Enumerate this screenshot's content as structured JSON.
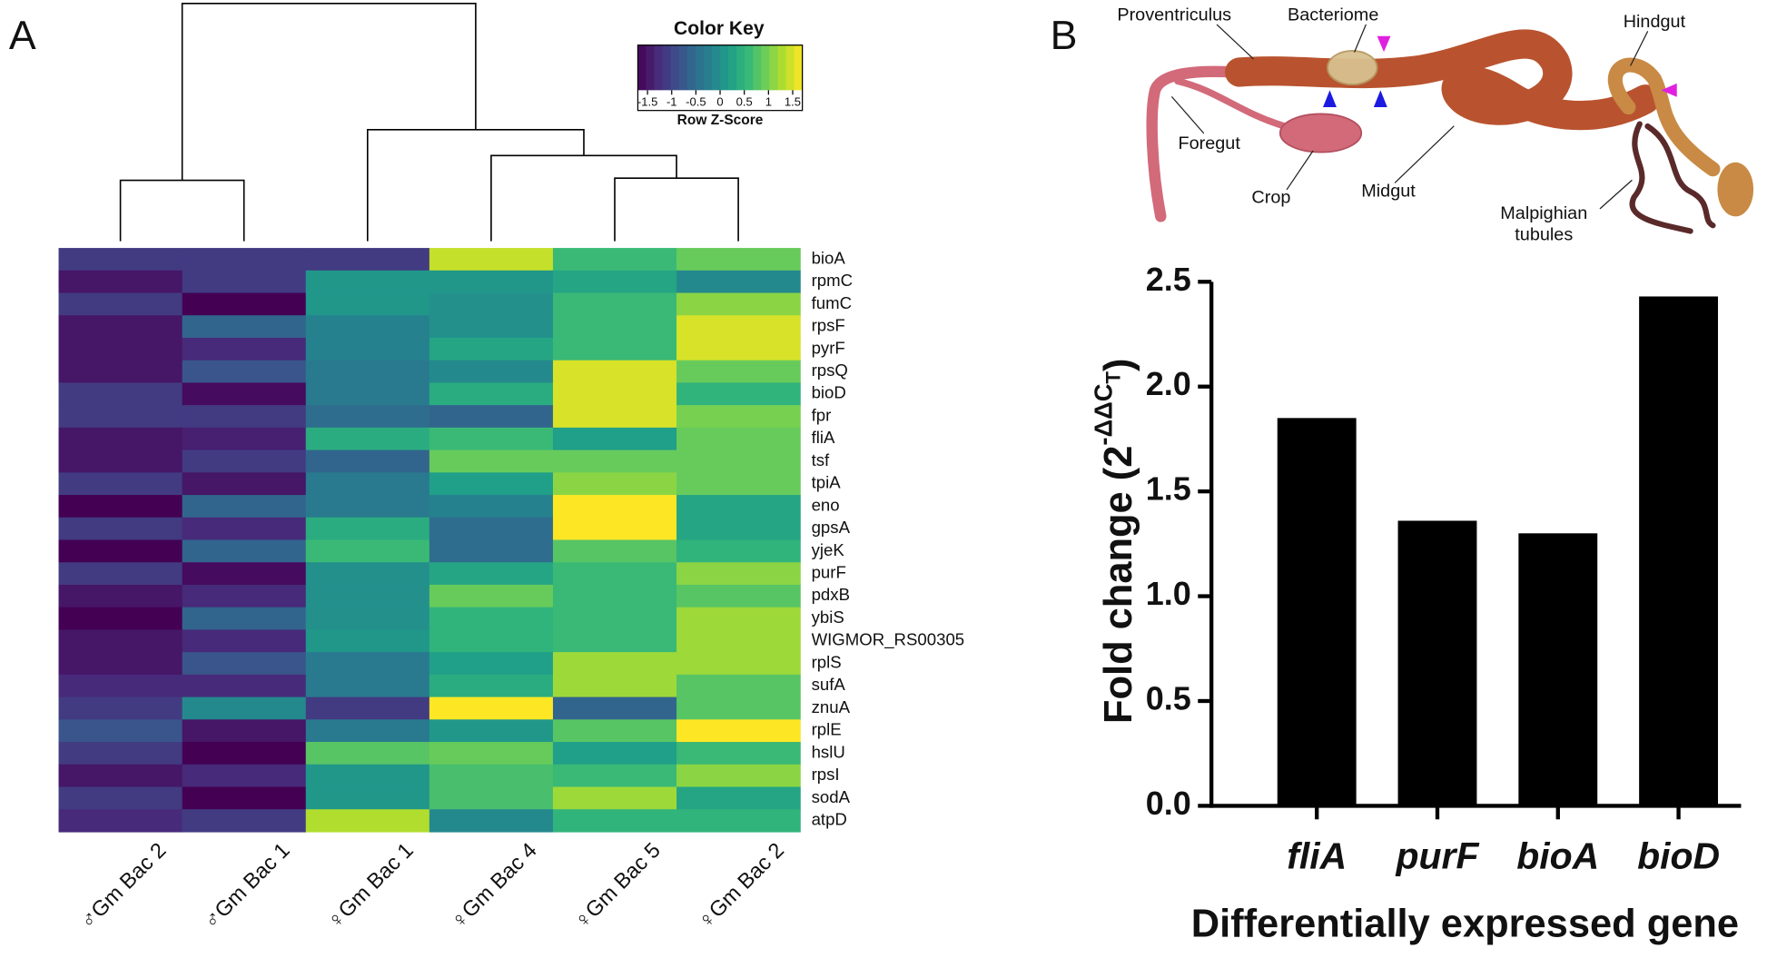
{
  "panel_labels": [
    "A",
    "B"
  ],
  "diagram": {
    "labels": [
      "Proventriculus",
      "Bacteriome",
      "Hindgut",
      "Foregut",
      "Crop",
      "Midgut"
    ],
    "malpighian_lines": [
      "Malpighian",
      "tubules"
    ]
  },
  "chart_data": [
    {
      "type": "heatmap",
      "columns": [
        "♂Gm Bac 2",
        "♂Gm Bac 1",
        "♀Gm Bac 1",
        "♀Gm Bac 4",
        "♀Gm Bac 5",
        "♀Gm Bac 2"
      ],
      "rows": [
        "bioA",
        "rpmC",
        "fumC",
        "rpsF",
        "pyrF",
        "rpsQ",
        "bioD",
        "fpr",
        "fliA",
        "tsf",
        "tpiA",
        "eno",
        "gpsA",
        "yjeK",
        "purF",
        "pdxB",
        "ybiS",
        "WIGMOR_RS00305",
        "rplS",
        "sufA",
        "znuA",
        "rplE",
        "hslU",
        "rpsI",
        "sodA",
        "atpD"
      ],
      "values": [
        [
          -1.1,
          -1.1,
          -1.1,
          1.4,
          0.6,
          0.9
        ],
        [
          -1.5,
          -1.1,
          0.1,
          0.1,
          0.3,
          -0.1
        ],
        [
          -1.1,
          -1.7,
          0.1,
          0.0,
          0.6,
          1.1
        ],
        [
          -1.5,
          -0.6,
          -0.2,
          0.0,
          0.6,
          1.5
        ],
        [
          -1.5,
          -1.3,
          -0.2,
          0.3,
          0.6,
          1.5
        ],
        [
          -1.5,
          -0.8,
          -0.3,
          -0.1,
          1.5,
          0.9
        ],
        [
          -1.1,
          -1.6,
          -0.3,
          0.4,
          1.5,
          0.5
        ],
        [
          -1.1,
          -1.1,
          -0.5,
          -0.6,
          1.5,
          1.0
        ],
        [
          -1.5,
          -1.4,
          0.4,
          0.6,
          0.2,
          0.9
        ],
        [
          -1.5,
          -1.1,
          -0.6,
          0.9,
          0.9,
          0.9
        ],
        [
          -1.1,
          -1.5,
          -0.3,
          0.2,
          1.1,
          0.9
        ],
        [
          -1.7,
          -0.6,
          -0.3,
          -0.2,
          1.7,
          0.3
        ],
        [
          -1.1,
          -1.3,
          0.4,
          -0.5,
          1.7,
          0.3
        ],
        [
          -1.7,
          -0.6,
          0.6,
          -0.5,
          0.8,
          0.5
        ],
        [
          -1.1,
          -1.6,
          0.0,
          0.3,
          0.6,
          1.1
        ],
        [
          -1.5,
          -1.3,
          0.0,
          0.9,
          0.6,
          0.8
        ],
        [
          -1.7,
          -0.6,
          0.0,
          0.5,
          0.6,
          1.2
        ],
        [
          -1.5,
          -1.3,
          0.1,
          0.5,
          0.6,
          1.2
        ],
        [
          -1.5,
          -0.8,
          -0.3,
          0.2,
          1.2,
          1.2
        ],
        [
          -1.3,
          -1.3,
          -0.3,
          0.4,
          1.2,
          0.8
        ],
        [
          -1.1,
          -0.1,
          -1.1,
          1.7,
          -0.6,
          0.8
        ],
        [
          -0.8,
          -1.5,
          -0.3,
          0.1,
          0.8,
          1.7
        ],
        [
          -1.1,
          -1.7,
          0.8,
          0.9,
          0.2,
          0.6
        ],
        [
          -1.5,
          -1.3,
          0.1,
          0.7,
          0.6,
          1.1
        ],
        [
          -1.1,
          -1.7,
          0.1,
          0.7,
          1.2,
          0.3
        ],
        [
          -1.3,
          -1.1,
          1.3,
          -0.1,
          0.5,
          0.5
        ]
      ],
      "colormap": [
        "#440154",
        "#482878",
        "#3e4989",
        "#31688e",
        "#26828e",
        "#1f9e89",
        "#35b779",
        "#6ece58",
        "#b5de2b",
        "#fde725"
      ],
      "color_key_title": "Color Key",
      "color_key_label": "Row Z-Score",
      "clim": [
        -1.7,
        1.7
      ],
      "key_ticks": [
        -1.5,
        -1,
        -0.5,
        0,
        0.5,
        1,
        1.5
      ]
    },
    {
      "type": "bar",
      "categories": [
        "fliA",
        "purF",
        "bioA",
        "bioD"
      ],
      "values": [
        1.85,
        1.36,
        1.3,
        2.43
      ],
      "color": "#000000",
      "ylim": [
        0,
        2.5
      ],
      "yticks": [
        {
          "value": 0,
          "label": "0.0"
        },
        0.5,
        {
          "value": 1,
          "label": "1.0"
        },
        1.5,
        {
          "value": 2,
          "label": "2.0"
        },
        2.5
      ],
      "ylabel_parts": [
        "Fold change (2",
        "-ΔΔC",
        "T",
        ")"
      ],
      "xlabel": "Differentially expressed gene"
    }
  ]
}
